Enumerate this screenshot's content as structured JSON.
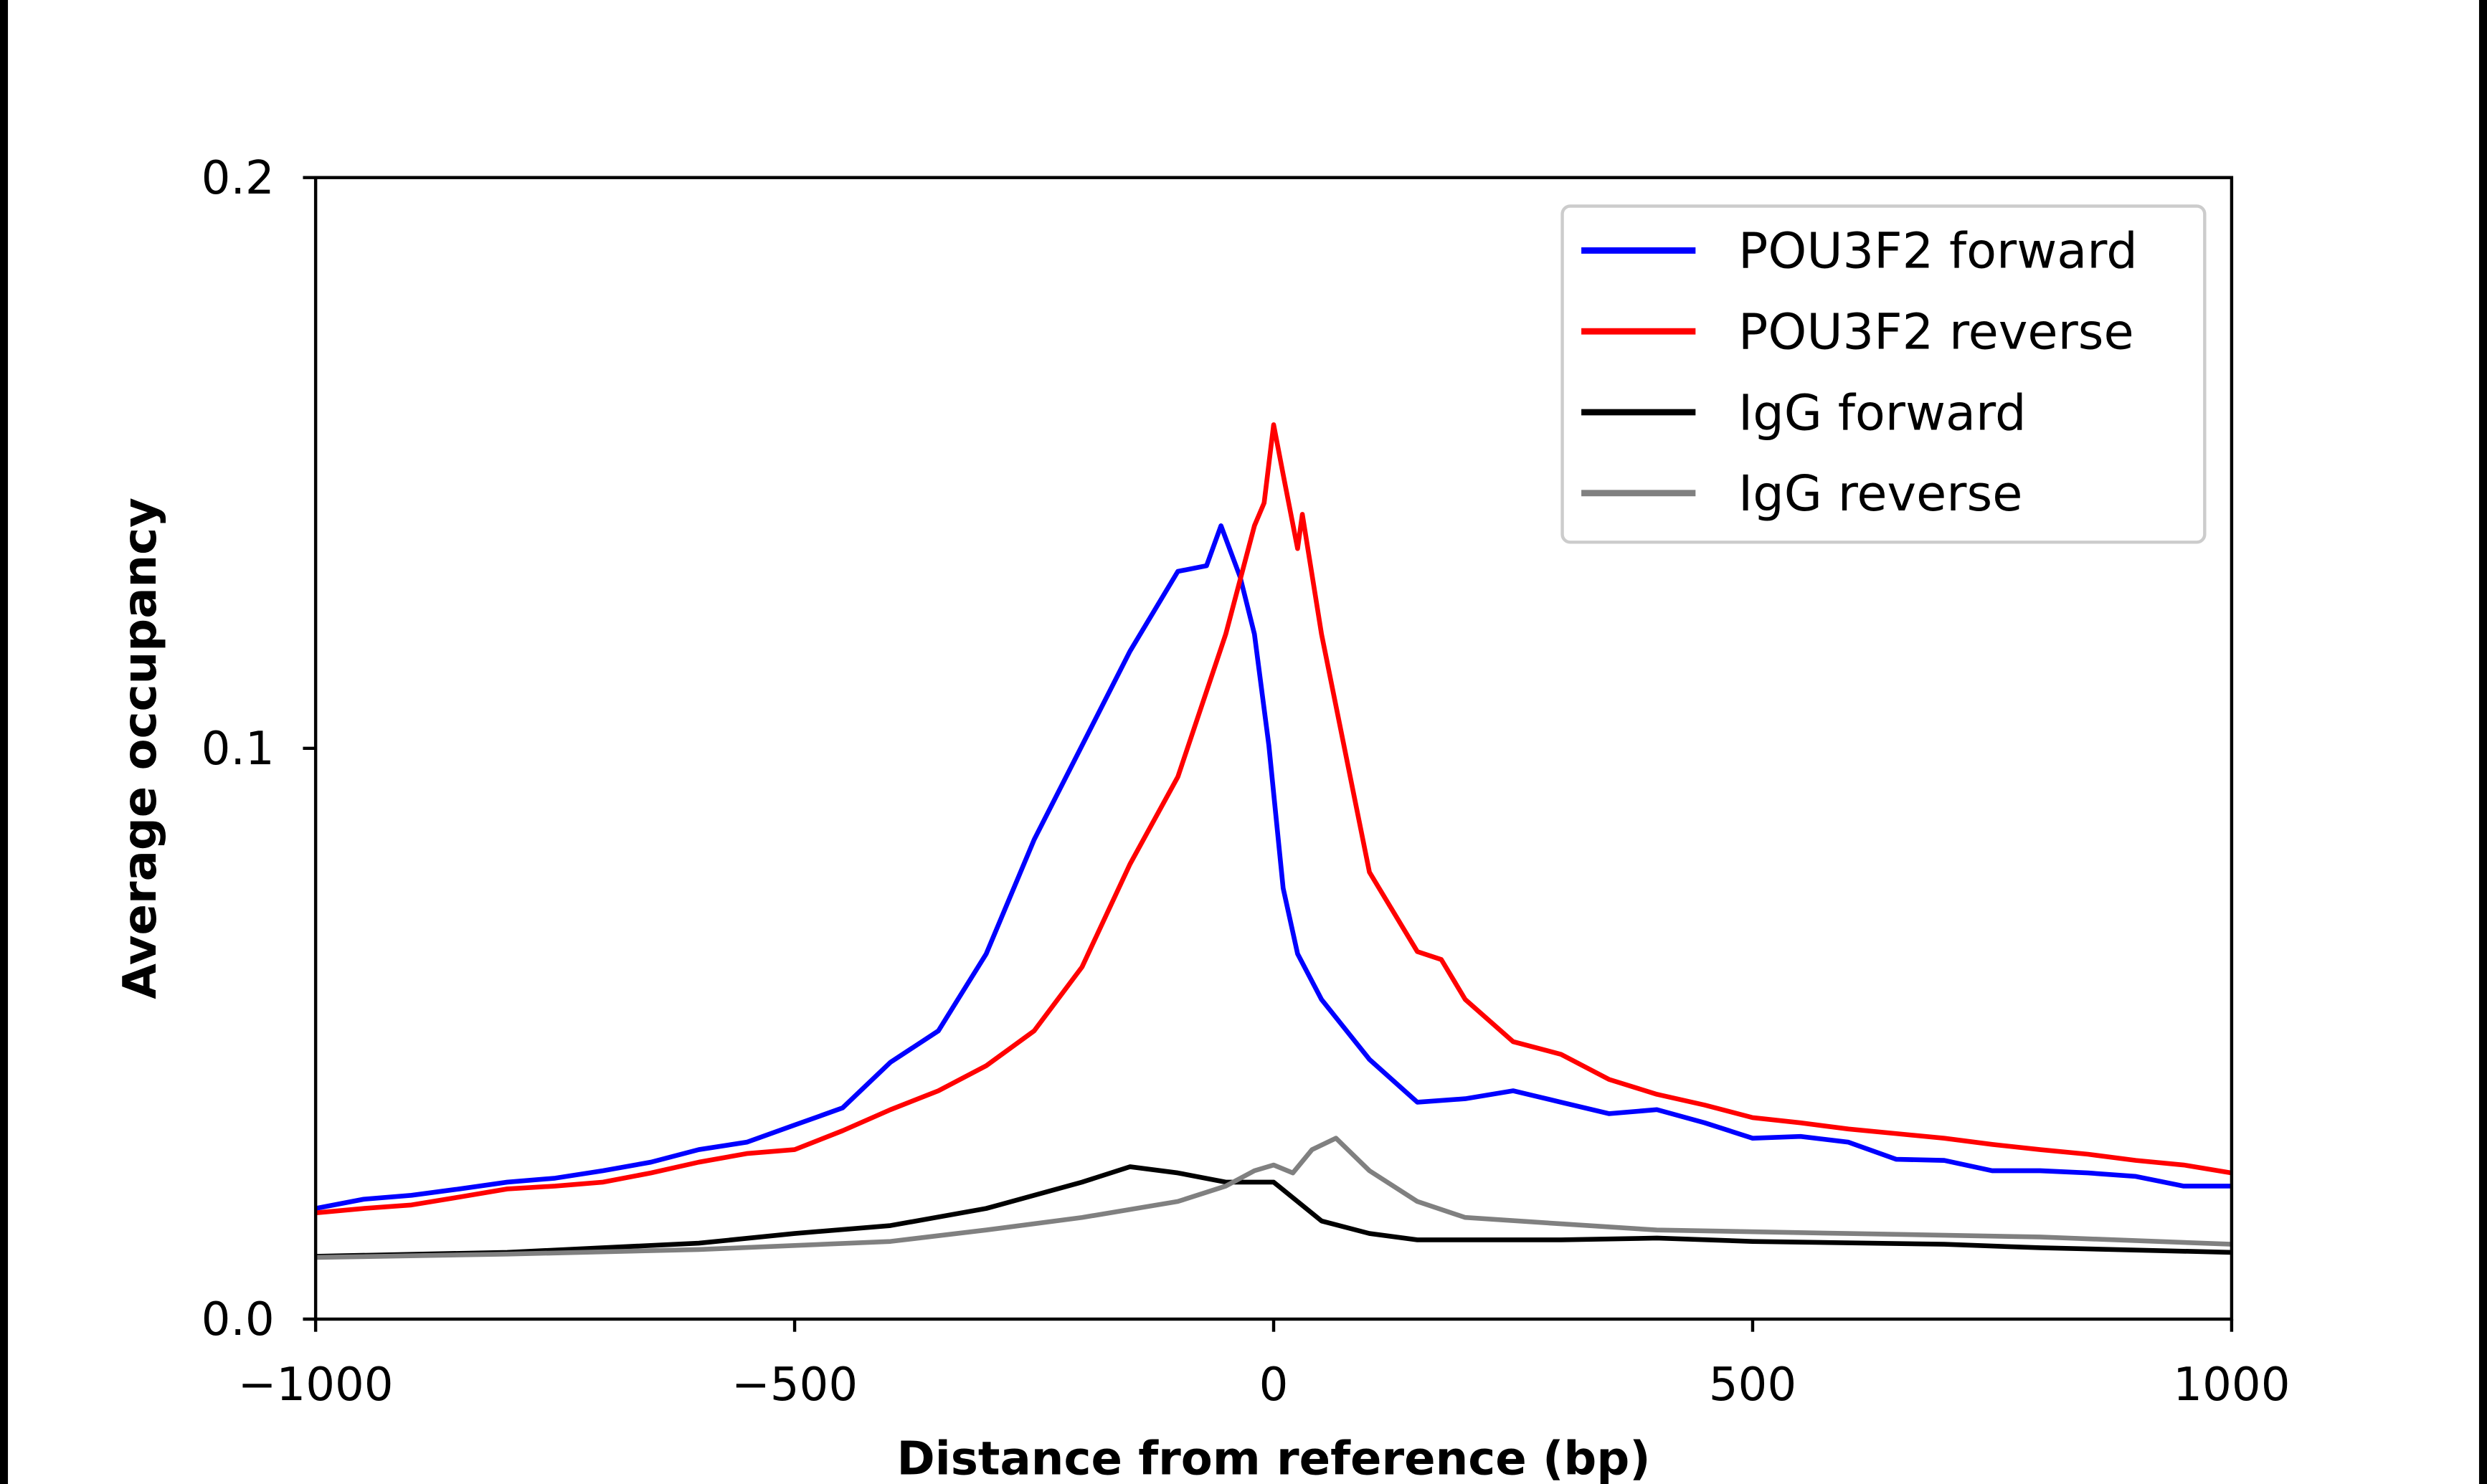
{
  "chart_data": {
    "type": "line",
    "title": "",
    "xlabel": "Distance from reference (bp)",
    "ylabel": "Average occupancy",
    "xlim": [
      -1000,
      1000
    ],
    "ylim": [
      0,
      0.2
    ],
    "xticks": [
      -1000,
      -500,
      0,
      500,
      1000
    ],
    "xtick_labels": [
      "−1000",
      "−500",
      "0",
      "500",
      "1000"
    ],
    "yticks": [
      0,
      0.1,
      0.2
    ],
    "ytick_labels": [
      "0.0",
      "0.1",
      "0.2"
    ],
    "grid": false,
    "legend_position": "top-right",
    "series": [
      {
        "name": "POU3F2 forward",
        "color": "#0000ff",
        "x": [
          -1000,
          -950,
          -900,
          -850,
          -800,
          -750,
          -700,
          -650,
          -600,
          -550,
          -500,
          -450,
          -400,
          -350,
          -300,
          -250,
          -200,
          -150,
          -100,
          -70,
          -55,
          -35,
          -20,
          -5,
          10,
          25,
          50,
          100,
          150,
          200,
          250,
          300,
          350,
          400,
          450,
          500,
          550,
          600,
          650,
          700,
          750,
          800,
          850,
          900,
          950,
          1000
        ],
        "y": [
          0.0194,
          0.021,
          0.0217,
          0.0228,
          0.024,
          0.0247,
          0.026,
          0.0275,
          0.0297,
          0.031,
          0.034,
          0.037,
          0.045,
          0.0505,
          0.064,
          0.084,
          0.1005,
          0.117,
          0.131,
          0.132,
          0.139,
          0.13,
          0.12,
          0.1005,
          0.0755,
          0.064,
          0.056,
          0.0455,
          0.038,
          0.0386,
          0.04,
          0.038,
          0.036,
          0.0367,
          0.0344,
          0.0317,
          0.032,
          0.031,
          0.028,
          0.0278,
          0.026,
          0.026,
          0.0256,
          0.025,
          0.0233,
          0.0233
        ]
      },
      {
        "name": "POU3F2 reverse",
        "color": "#ff0000",
        "x": [
          -1000,
          -950,
          -900,
          -850,
          -800,
          -750,
          -700,
          -650,
          -600,
          -550,
          -500,
          -450,
          -400,
          -350,
          -300,
          -250,
          -200,
          -150,
          -100,
          -50,
          -20,
          -10,
          0,
          10,
          25,
          30,
          50,
          100,
          150,
          175,
          200,
          250,
          300,
          350,
          400,
          450,
          500,
          550,
          600,
          650,
          700,
          750,
          800,
          850,
          900,
          950,
          1000
        ],
        "y": [
          0.0186,
          0.0194,
          0.02,
          0.0214,
          0.0228,
          0.0233,
          0.024,
          0.0256,
          0.0275,
          0.029,
          0.0297,
          0.033,
          0.0367,
          0.04,
          0.0444,
          0.0505,
          0.0617,
          0.0797,
          0.095,
          0.12,
          0.139,
          0.143,
          0.1567,
          0.148,
          0.135,
          0.141,
          0.12,
          0.0783,
          0.0644,
          0.063,
          0.056,
          0.0486,
          0.0464,
          0.042,
          0.0394,
          0.0375,
          0.0353,
          0.0344,
          0.0333,
          0.0325,
          0.0317,
          0.0306,
          0.0297,
          0.0289,
          0.0278,
          0.027,
          0.0256
        ]
      },
      {
        "name": "IgG forward",
        "color": "#000000",
        "x": [
          -1000,
          -800,
          -600,
          -500,
          -400,
          -300,
          -200,
          -150,
          -100,
          -50,
          0,
          50,
          100,
          150,
          200,
          300,
          400,
          500,
          700,
          800,
          1000
        ],
        "y": [
          0.011,
          0.0117,
          0.0133,
          0.015,
          0.0164,
          0.0194,
          0.024,
          0.0267,
          0.0256,
          0.024,
          0.024,
          0.0172,
          0.015,
          0.0139,
          0.0139,
          0.0139,
          0.0142,
          0.0136,
          0.0131,
          0.0125,
          0.0117
        ]
      },
      {
        "name": "IgG reverse",
        "color": "#808080",
        "x": [
          -1000,
          -800,
          -600,
          -400,
          -300,
          -200,
          -100,
          -50,
          -20,
          0,
          20,
          40,
          65,
          100,
          150,
          200,
          300,
          400,
          600,
          800,
          1000
        ],
        "y": [
          0.0108,
          0.0114,
          0.0122,
          0.0136,
          0.0156,
          0.0178,
          0.0206,
          0.0233,
          0.026,
          0.027,
          0.0256,
          0.0297,
          0.0317,
          0.026,
          0.0206,
          0.0178,
          0.0167,
          0.0156,
          0.015,
          0.0144,
          0.0131
        ]
      }
    ]
  }
}
